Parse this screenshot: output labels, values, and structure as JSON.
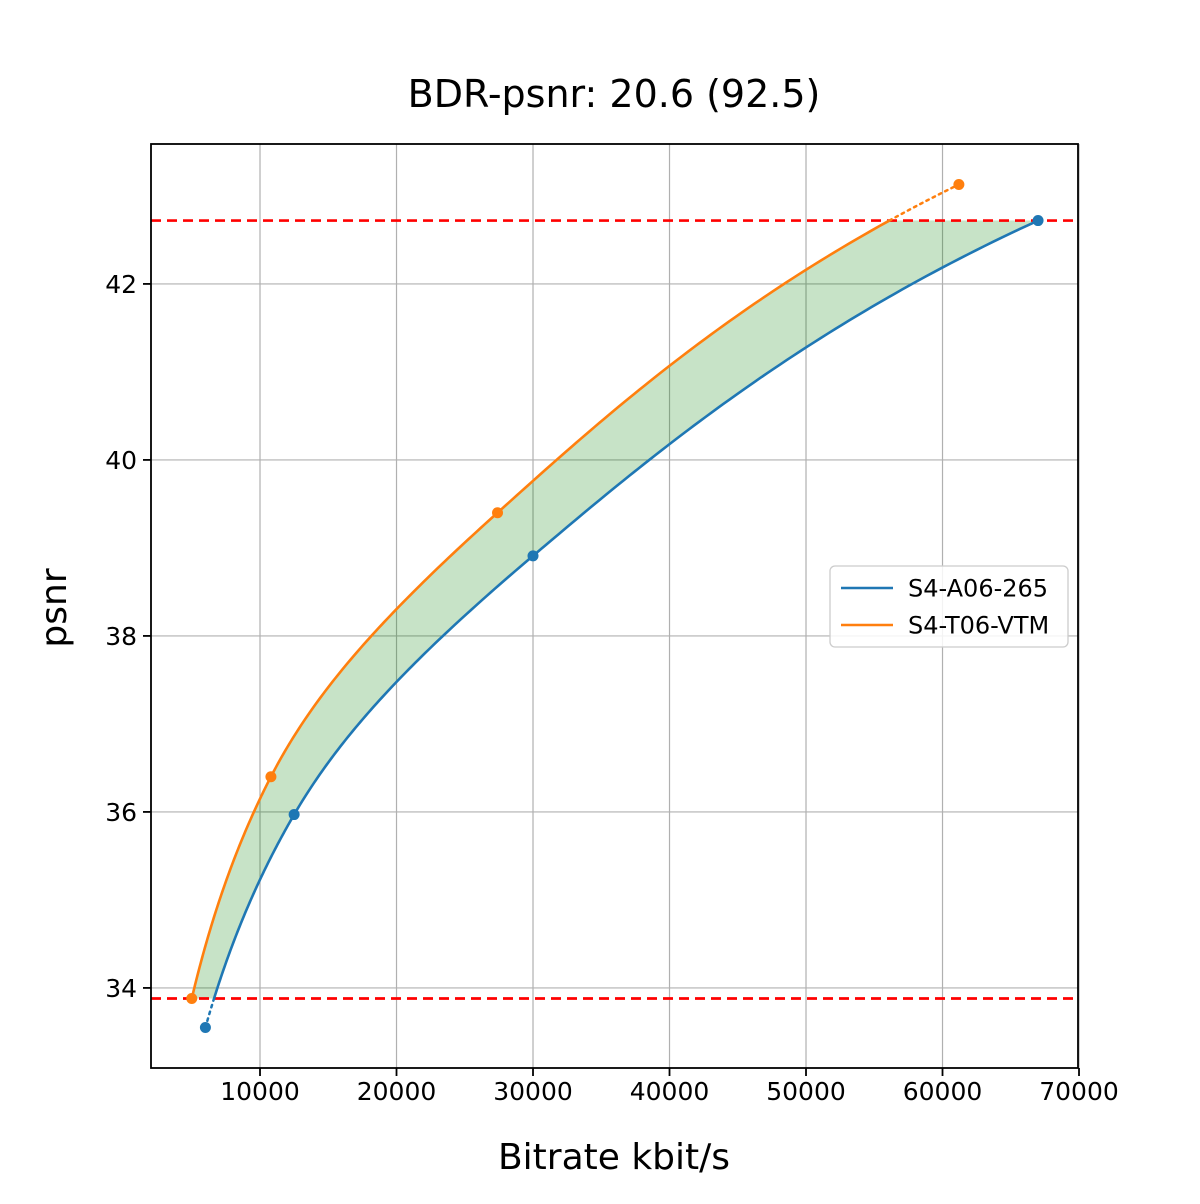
{
  "figure_title": "BDR-psnr: 20.6 (92.5)",
  "chart_data": {
    "type": "line",
    "title": "BDR-psnr: 20.6 (92.5)",
    "xlabel": "Bitrate kbit/s",
    "ylabel": "psnr",
    "xlim": [
      2014,
      69926
    ],
    "ylim": [
      33.09,
      43.59
    ],
    "x_ticks": [
      10000,
      20000,
      30000,
      40000,
      50000,
      60000,
      70000
    ],
    "y_ticks": [
      34,
      36,
      38,
      40,
      42
    ],
    "grid": true,
    "grid_color": "#b0b0b0",
    "interpolation": "pchip-log-x",
    "series": [
      {
        "name": "S4-A06-265",
        "color": "#1f77b4",
        "marker": "circle",
        "points": [
          [
            6000,
            33.55
          ],
          [
            12500,
            35.97
          ],
          [
            30000,
            38.91
          ],
          [
            67000,
            42.72
          ]
        ]
      },
      {
        "name": "S4-T06-VTM",
        "color": "#ff7f0e",
        "marker": "circle",
        "points": [
          [
            5000,
            33.88
          ],
          [
            10800,
            36.4
          ],
          [
            27400,
            39.4
          ],
          [
            61200,
            43.13
          ]
        ]
      }
    ],
    "overlap_psnr_range": [
      33.88,
      42.72
    ],
    "overlap_line_color": "#ff0000",
    "overlap_line_style": "dashed",
    "fill_between_color": "#008000",
    "fill_between_alpha": 0.22,
    "legend": {
      "position": "right-center",
      "entries": [
        "S4-A06-265",
        "S4-T06-VTM"
      ]
    }
  }
}
